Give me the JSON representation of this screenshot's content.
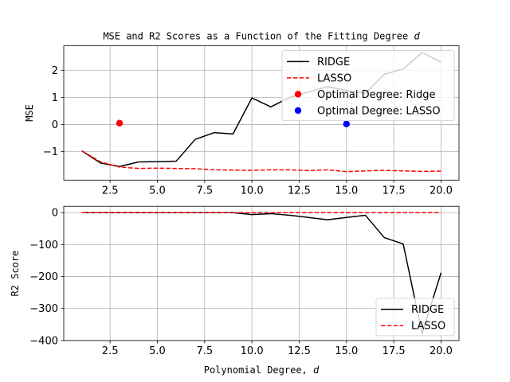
{
  "chart_data": [
    {
      "type": "line",
      "title": "MSE and R2 Scores as a Function of the Fitting Degree d",
      "title_prefix": "MSE and R2 Scores as a Function of the Fitting Degree ",
      "title_var": "d",
      "xlabel": "",
      "ylabel": "MSE",
      "xlim": [
        0.05,
        20.95
      ],
      "ylim": [
        -2.05,
        2.9
      ],
      "xticks": [
        2.5,
        5.0,
        7.5,
        10.0,
        12.5,
        15.0,
        17.5,
        20.0
      ],
      "xtick_labels": [
        "2.5",
        "5.0",
        "7.5",
        "10.0",
        "12.5",
        "15.0",
        "17.5",
        "20.0"
      ],
      "yticks": [
        -1,
        0,
        1,
        2
      ],
      "ytick_labels": [
        "−1",
        "0",
        "1",
        "2"
      ],
      "grid": true,
      "legend_position": "top-right",
      "series": [
        {
          "name": "RIDGE",
          "style": "line",
          "color": "#000000",
          "x": [
            1,
            2,
            3,
            4,
            5,
            6,
            7,
            8,
            9,
            10,
            11,
            12,
            13,
            14,
            15,
            16,
            17,
            18,
            19,
            20
          ],
          "values": [
            -0.97,
            -1.42,
            -1.55,
            -1.38,
            -1.37,
            -1.35,
            -0.55,
            -0.3,
            -0.35,
            0.98,
            0.65,
            1.0,
            1.2,
            1.4,
            1.25,
            1.15,
            1.85,
            2.05,
            2.65,
            2.3
          ]
        },
        {
          "name": "LASSO",
          "style": "dashed",
          "color": "#ff0000",
          "x": [
            1,
            2,
            3,
            4,
            5,
            6,
            7,
            8,
            9,
            10,
            11,
            12,
            13,
            14,
            15,
            16,
            17,
            18,
            19,
            20
          ],
          "values": [
            -0.97,
            -1.38,
            -1.57,
            -1.62,
            -1.61,
            -1.62,
            -1.63,
            -1.67,
            -1.68,
            -1.69,
            -1.67,
            -1.67,
            -1.7,
            -1.67,
            -1.74,
            -1.71,
            -1.69,
            -1.71,
            -1.73,
            -1.72
          ]
        },
        {
          "name": "Optimal Degree: Ridge",
          "style": "point",
          "color": "#ff0000",
          "x": [
            3
          ],
          "values": [
            0.05
          ]
        },
        {
          "name": "Optimal Degree: LASSO",
          "style": "point",
          "color": "#0000ff",
          "x": [
            15
          ],
          "values": [
            0.02
          ]
        }
      ]
    },
    {
      "type": "line",
      "title": "",
      "xlabel": "Polynomial Degree, d",
      "xlabel_prefix": "Polynomial Degree, ",
      "xlabel_var": "d",
      "ylabel": "R2 Score",
      "xlim": [
        0.05,
        20.95
      ],
      "ylim": [
        -400,
        20
      ],
      "xticks": [
        2.5,
        5.0,
        7.5,
        10.0,
        12.5,
        15.0,
        17.5,
        20.0
      ],
      "xtick_labels": [
        "2.5",
        "5.0",
        "7.5",
        "10.0",
        "12.5",
        "15.0",
        "17.5",
        "20.0"
      ],
      "yticks": [
        0,
        -100,
        -200,
        -300,
        -400
      ],
      "ytick_labels": [
        "0",
        "−100",
        "−200",
        "−300",
        "−400"
      ],
      "grid": true,
      "legend_position": "bottom-right",
      "series": [
        {
          "name": "RIDGE",
          "style": "line",
          "color": "#000000",
          "x": [
            1,
            2,
            3,
            4,
            5,
            6,
            7,
            8,
            9,
            10,
            11,
            12,
            13,
            14,
            15,
            16,
            17,
            18,
            19,
            20
          ],
          "values": [
            0,
            0,
            0,
            0,
            0,
            0,
            0,
            0,
            0,
            -6,
            -3,
            -8,
            -15,
            -22,
            -15,
            -8,
            -78,
            -98,
            -378,
            -188
          ]
        },
        {
          "name": "LASSO",
          "style": "dashed",
          "color": "#ff0000",
          "x": [
            1,
            2,
            3,
            4,
            5,
            6,
            7,
            8,
            9,
            10,
            11,
            12,
            13,
            14,
            15,
            16,
            17,
            18,
            19,
            20
          ],
          "values": [
            0,
            0,
            0,
            0,
            0,
            0,
            0,
            0,
            0,
            0,
            0,
            0,
            0,
            0,
            0,
            0,
            0,
            0,
            0,
            0
          ]
        }
      ]
    }
  ]
}
